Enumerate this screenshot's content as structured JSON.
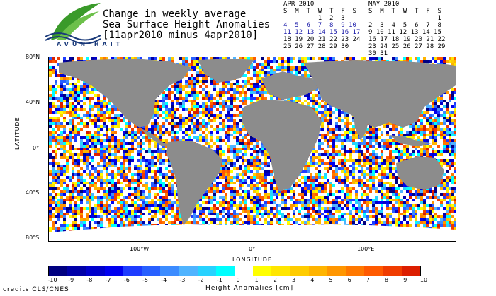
{
  "logo": {
    "text": "AVUN HAIT"
  },
  "title": {
    "line1": "Change in weekly average",
    "line2": "Sea Surface Height Anomalies",
    "line3": "[11apr2010 minus 4apr2010]"
  },
  "calendar_apr": {
    "title": "APR 2010",
    "header": "S  M  T  W  T  F  S",
    "rows": [
      "         1  2  3",
      "4  5  6  7  8  9 10",
      "11 12 13 14 15 16 17",
      "18 19 20 21 22 23 24",
      "25 26 27 28 29 30"
    ]
  },
  "calendar_may": {
    "title": "MAY 2010",
    "header": "S  M  T  W  T  F  S",
    "rows": [
      "                  1",
      "2  3  4  5  6  7  8",
      "9 10 11 12 13 14 15",
      "16 17 18 19 20 21 22",
      "23 24 25 26 27 28 29",
      "30 31"
    ]
  },
  "axes": {
    "ylabel": "LATITUDE",
    "xlabel": "LONGITUDE",
    "yticks": [
      "80°N",
      "40°N",
      "0°",
      "40°S",
      "80°S"
    ],
    "xticks": [
      "100°W",
      "0°",
      "100°E"
    ]
  },
  "colorbar": {
    "title": "Height Anomalies [cm]",
    "labels": [
      "-10",
      "-9",
      "-8",
      "-7",
      "-6",
      "-5",
      "-4",
      "-3",
      "-2",
      "-1",
      "0",
      "1",
      "2",
      "3",
      "4",
      "5",
      "6",
      "7",
      "8",
      "9",
      "10"
    ],
    "colors": [
      "#000080",
      "#0000a8",
      "#0000cc",
      "#0000f0",
      "#1e3cff",
      "#2860ff",
      "#3c8cff",
      "#50b4ff",
      "#28d2ff",
      "#00ffff",
      "#ffffff",
      "#ffff00",
      "#ffe600",
      "#ffcc00",
      "#ffb400",
      "#ff9600",
      "#ff7800",
      "#ff5a00",
      "#f03c00",
      "#dc1e00"
    ]
  },
  "credits": "credits CLS/CNES"
}
